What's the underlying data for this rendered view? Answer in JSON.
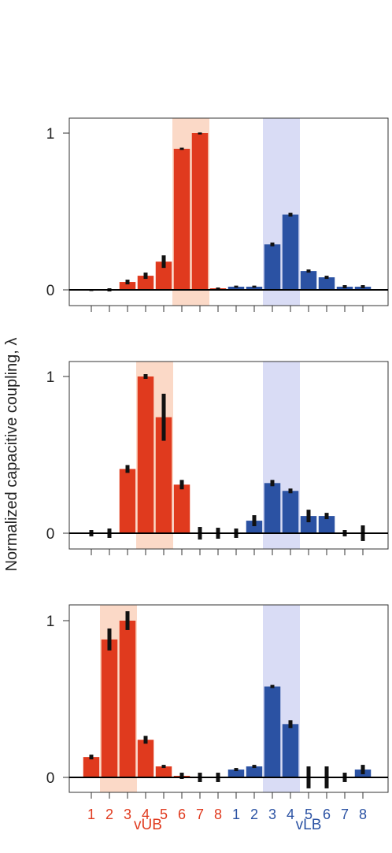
{
  "colors": {
    "red": "#E03A1E",
    "blue": "#2B52A3",
    "red_highlight": "#FBD9C7",
    "blue_highlight": "#D9DCF5",
    "error": "#111111"
  },
  "chart_data": [
    {
      "type": "bar",
      "categories": [
        "1",
        "2",
        "3",
        "4",
        "5",
        "6",
        "7",
        "8",
        "1",
        "2",
        "3",
        "4",
        "5",
        "6",
        "7",
        "8"
      ],
      "values": [
        0.0,
        0.0,
        0.05,
        0.09,
        0.18,
        0.9,
        1.0,
        0.01,
        0.02,
        0.02,
        0.29,
        0.48,
        0.12,
        0.08,
        0.02,
        0.02
      ],
      "errors": [
        0.005,
        0.01,
        0.015,
        0.02,
        0.04,
        0.007,
        0.004,
        0.005,
        0.007,
        0.007,
        0.012,
        0.012,
        0.01,
        0.01,
        0.01,
        0.01
      ],
      "series_colors": [
        "red",
        "red",
        "red",
        "red",
        "red",
        "red",
        "red",
        "red",
        "blue",
        "blue",
        "blue",
        "blue",
        "blue",
        "blue",
        "blue",
        "blue"
      ],
      "highlight": [
        [
          6,
          7
        ],
        [
          11,
          12
        ]
      ],
      "ylim": [
        -0.1,
        1.1
      ],
      "yticks": [
        "0",
        "1"
      ]
    },
    {
      "type": "bar",
      "categories": [
        "1",
        "2",
        "3",
        "4",
        "5",
        "6",
        "7",
        "8",
        "1",
        "2",
        "3",
        "4",
        "5",
        "6",
        "7",
        "8"
      ],
      "values": [
        0.0,
        0.0,
        0.41,
        1.0,
        0.74,
        0.31,
        0.0,
        0.0,
        0.0,
        0.08,
        0.32,
        0.27,
        0.11,
        0.11,
        0.0,
        0.0
      ],
      "errors": [
        0.02,
        0.03,
        0.025,
        0.015,
        0.15,
        0.03,
        0.04,
        0.035,
        0.03,
        0.035,
        0.02,
        0.015,
        0.04,
        0.02,
        0.02,
        0.05
      ],
      "series_colors": [
        "red",
        "red",
        "red",
        "red",
        "red",
        "red",
        "red",
        "red",
        "blue",
        "blue",
        "blue",
        "blue",
        "blue",
        "blue",
        "blue",
        "blue"
      ],
      "highlight": [
        [
          4,
          5
        ],
        [
          11,
          12
        ]
      ],
      "ylim": [
        -0.1,
        1.1
      ],
      "yticks": [
        "0",
        "1"
      ]
    },
    {
      "type": "bar",
      "categories": [
        "1",
        "2",
        "3",
        "4",
        "5",
        "6",
        "7",
        "8",
        "1",
        "2",
        "3",
        "4",
        "5",
        "6",
        "7",
        "8"
      ],
      "values": [
        0.13,
        0.88,
        1.0,
        0.24,
        0.07,
        0.01,
        0.0,
        0.0,
        0.05,
        0.07,
        0.58,
        0.34,
        0.0,
        0.0,
        0.0,
        0.05
      ],
      "errors": [
        0.015,
        0.07,
        0.06,
        0.025,
        0.01,
        0.02,
        0.03,
        0.03,
        0.01,
        0.01,
        0.01,
        0.025,
        0.07,
        0.07,
        0.03,
        0.03
      ],
      "series_colors": [
        "red",
        "red",
        "red",
        "red",
        "red",
        "red",
        "red",
        "red",
        "blue",
        "blue",
        "blue",
        "blue",
        "blue",
        "blue",
        "blue",
        "blue"
      ],
      "highlight": [
        [
          2,
          3
        ],
        [
          11,
          12
        ]
      ],
      "ylim": [
        -0.1,
        1.1
      ],
      "yticks": [
        "0",
        "1"
      ]
    }
  ],
  "ylabel": "Normalized capacitive coupling, λ",
  "group_labels": {
    "red": "vUB",
    "blue": "vLB"
  },
  "x_tick_labels": [
    "1",
    "2",
    "3",
    "4",
    "5",
    "6",
    "7",
    "8",
    "1",
    "2",
    "3",
    "4",
    "5",
    "6",
    "7",
    "8"
  ]
}
